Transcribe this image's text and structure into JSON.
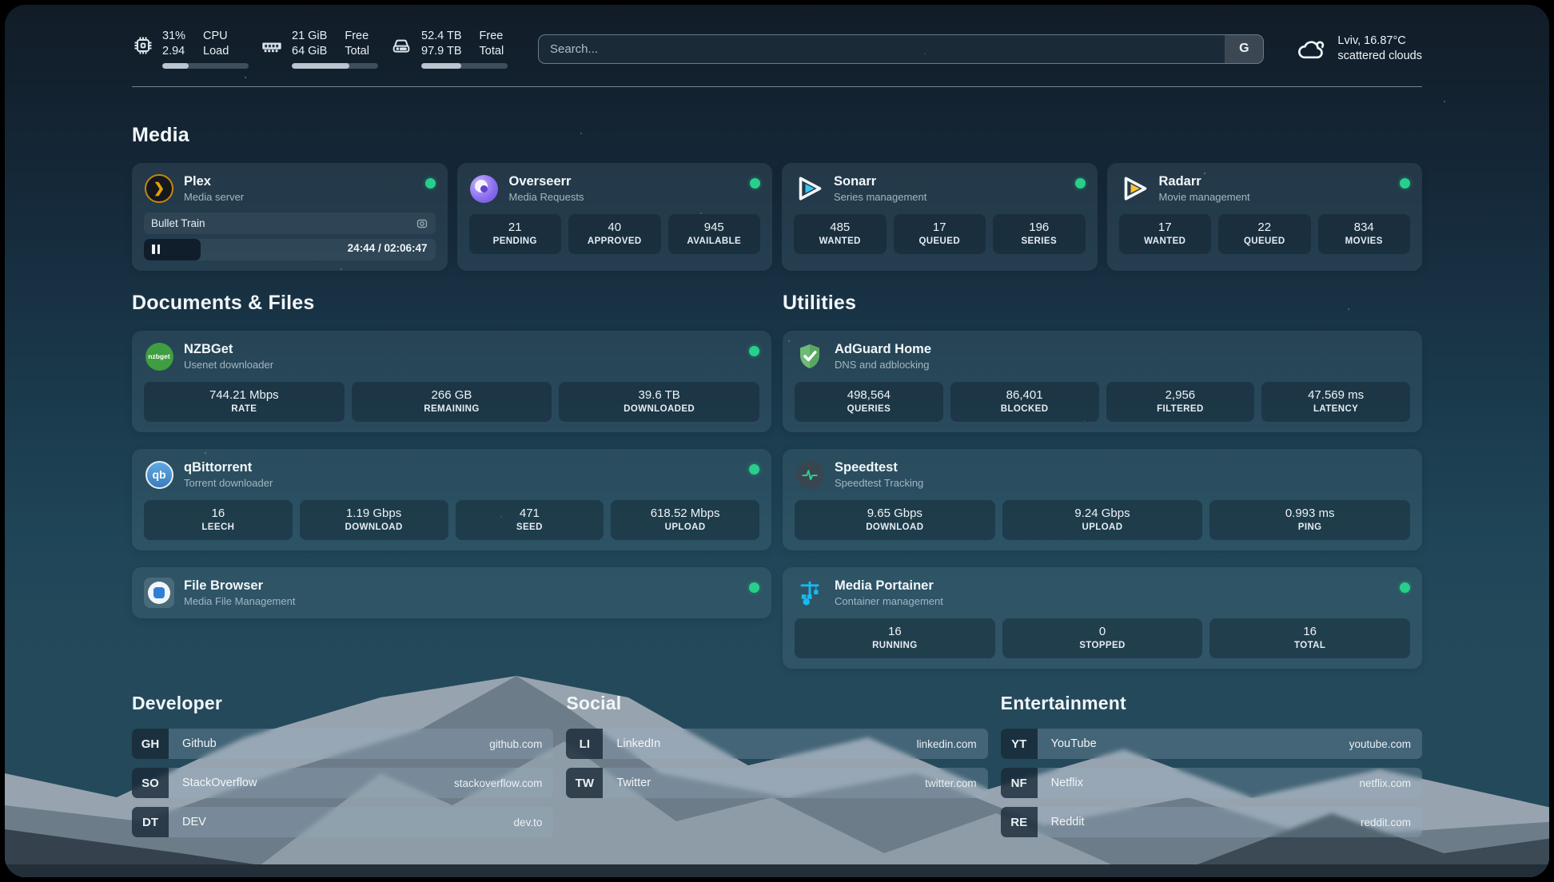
{
  "header": {
    "cpu": {
      "value1": "31%",
      "value2": "2.94",
      "label1": "CPU",
      "label2": "Load",
      "progress": 31
    },
    "memory": {
      "value1": "21 GiB",
      "value2": "64 GiB",
      "label1": "Free",
      "label2": "Total",
      "progress": 67
    },
    "disk": {
      "value1": "52.4 TB",
      "value2": "97.9 TB",
      "label1": "Free",
      "label2": "Total",
      "progress": 46
    },
    "search": {
      "placeholder": "Search...",
      "button": "G"
    },
    "weather": {
      "location_temp": "Lviv, 16.87°C",
      "condition": "scattered clouds"
    }
  },
  "media": {
    "title": "Media",
    "plex": {
      "name": "Plex",
      "description": "Media server",
      "now_playing": "Bullet Train",
      "time": "24:44 / 02:06:47",
      "progress": 19.5
    },
    "cards": [
      {
        "name": "Overseerr",
        "description": "Media Requests",
        "stats": [
          {
            "value": "21",
            "label": "PENDING"
          },
          {
            "value": "40",
            "label": "APPROVED"
          },
          {
            "value": "945",
            "label": "AVAILABLE"
          }
        ]
      },
      {
        "name": "Sonarr",
        "description": "Series management",
        "stats": [
          {
            "value": "485",
            "label": "WANTED"
          },
          {
            "value": "17",
            "label": "QUEUED"
          },
          {
            "value": "196",
            "label": "SERIES"
          }
        ]
      },
      {
        "name": "Radarr",
        "description": "Movie management",
        "stats": [
          {
            "value": "17",
            "label": "WANTED"
          },
          {
            "value": "22",
            "label": "QUEUED"
          },
          {
            "value": "834",
            "label": "MOVIES"
          }
        ]
      }
    ]
  },
  "documents": {
    "title": "Documents & Files",
    "cards": [
      {
        "name": "NZBGet",
        "description": "Usenet downloader",
        "stats": [
          {
            "value": "744.21 Mbps",
            "label": "RATE"
          },
          {
            "value": "266 GB",
            "label": "REMAINING"
          },
          {
            "value": "39.6 TB",
            "label": "DOWNLOADED"
          }
        ]
      },
      {
        "name": "qBittorrent",
        "description": "Torrent downloader",
        "stats": [
          {
            "value": "16",
            "label": "LEECH"
          },
          {
            "value": "1.19 Gbps",
            "label": "DOWNLOAD"
          },
          {
            "value": "471",
            "label": "SEED"
          },
          {
            "value": "618.52 Mbps",
            "label": "UPLOAD"
          }
        ]
      },
      {
        "name": "File Browser",
        "description": "Media File Management",
        "stats": []
      }
    ]
  },
  "utilities": {
    "title": "Utilities",
    "cards": [
      {
        "name": "AdGuard Home",
        "description": "DNS and adblocking",
        "stats": [
          {
            "value": "498,564",
            "label": "QUERIES"
          },
          {
            "value": "86,401",
            "label": "BLOCKED"
          },
          {
            "value": "2,956",
            "label": "FILTERED"
          },
          {
            "value": "47.569 ms",
            "label": "LATENCY"
          }
        ]
      },
      {
        "name": "Speedtest",
        "description": "Speedtest Tracking",
        "stats": [
          {
            "value": "9.65 Gbps",
            "label": "DOWNLOAD"
          },
          {
            "value": "9.24 Gbps",
            "label": "UPLOAD"
          },
          {
            "value": "0.993 ms",
            "label": "PING"
          }
        ]
      },
      {
        "name": "Media Portainer",
        "description": "Container management",
        "stats": [
          {
            "value": "16",
            "label": "RUNNING"
          },
          {
            "value": "0",
            "label": "STOPPED"
          },
          {
            "value": "16",
            "label": "TOTAL"
          }
        ]
      }
    ]
  },
  "links": {
    "developer": {
      "title": "Developer",
      "items": [
        {
          "abbr": "GH",
          "name": "Github",
          "url": "github.com"
        },
        {
          "abbr": "SO",
          "name": "StackOverflow",
          "url": "stackoverflow.com"
        },
        {
          "abbr": "DT",
          "name": "DEV",
          "url": "dev.to"
        }
      ]
    },
    "social": {
      "title": "Social",
      "items": [
        {
          "abbr": "LI",
          "name": "LinkedIn",
          "url": "linkedin.com"
        },
        {
          "abbr": "TW",
          "name": "Twitter",
          "url": "twitter.com"
        }
      ]
    },
    "entertainment": {
      "title": "Entertainment",
      "items": [
        {
          "abbr": "YT",
          "name": "YouTube",
          "url": "youtube.com"
        },
        {
          "abbr": "NF",
          "name": "Netflix",
          "url": "netflix.com"
        },
        {
          "abbr": "RE",
          "name": "Reddit",
          "url": "reddit.com"
        }
      ]
    }
  },
  "colors": {
    "status_online": "#27cf8b",
    "plex_accent": "#e5a00d",
    "sonarr_accent": "#35c5f4",
    "radarr_accent": "#ffc230",
    "adguard_accent": "#68bc71",
    "portainer_accent": "#13b5ea",
    "overseerr_accent": "#8b6ff0",
    "speedtest_accent": "#2bd48d",
    "qbittorrent_accent": "#468fce",
    "nzbget_accent": "#3f9e3f"
  }
}
